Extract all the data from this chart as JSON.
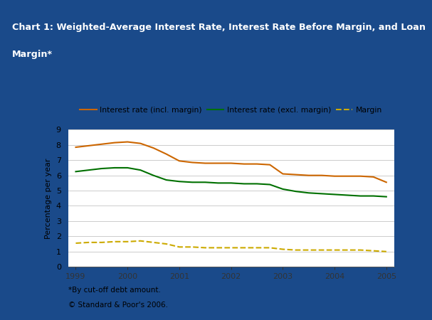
{
  "title_line1": "Chart 1: Weighted-Average Interest Rate, Interest Rate Before Margin, and Loan",
  "title_line2": "Margin*",
  "title_bg_color": "#3A68AE",
  "title_text_color": "#FFFFFF",
  "border_color": "#1A4A8A",
  "ylabel": "Percentage per year",
  "xlabel": "",
  "ylim": [
    0,
    9
  ],
  "yticks": [
    0,
    1,
    2,
    3,
    4,
    5,
    6,
    7,
    8,
    9
  ],
  "footnote1": "*By cut-off debt amount.",
  "footnote2": "© Standard & Poor's 2006.",
  "series": [
    {
      "label": "Interest rate (incl. margin)",
      "color": "#CC6600",
      "linestyle": "solid",
      "linewidth": 1.5,
      "x": [
        1999.0,
        1999.25,
        1999.5,
        1999.75,
        2000.0,
        2000.25,
        2000.5,
        2000.75,
        2001.0,
        2001.25,
        2001.5,
        2001.75,
        2002.0,
        2002.25,
        2002.5,
        2002.75,
        2003.0,
        2003.25,
        2003.5,
        2003.75,
        2004.0,
        2004.25,
        2004.5,
        2004.75,
        2005.0
      ],
      "y": [
        7.85,
        7.95,
        8.05,
        8.15,
        8.2,
        8.1,
        7.8,
        7.4,
        6.95,
        6.85,
        6.8,
        6.8,
        6.8,
        6.75,
        6.75,
        6.7,
        6.1,
        6.05,
        6.0,
        6.0,
        5.95,
        5.95,
        5.95,
        5.9,
        5.55
      ]
    },
    {
      "label": "Interest rate (excl. margin)",
      "color": "#007000",
      "linestyle": "solid",
      "linewidth": 1.5,
      "x": [
        1999.0,
        1999.25,
        1999.5,
        1999.75,
        2000.0,
        2000.25,
        2000.5,
        2000.75,
        2001.0,
        2001.25,
        2001.5,
        2001.75,
        2002.0,
        2002.25,
        2002.5,
        2002.75,
        2003.0,
        2003.25,
        2003.5,
        2003.75,
        2004.0,
        2004.25,
        2004.5,
        2004.75,
        2005.0
      ],
      "y": [
        6.25,
        6.35,
        6.45,
        6.5,
        6.5,
        6.35,
        6.0,
        5.7,
        5.6,
        5.55,
        5.55,
        5.5,
        5.5,
        5.45,
        5.45,
        5.4,
        5.1,
        4.95,
        4.85,
        4.8,
        4.75,
        4.7,
        4.65,
        4.65,
        4.6
      ]
    },
    {
      "label": "Margin",
      "color": "#CCAA00",
      "linestyle": "dashed",
      "linewidth": 1.5,
      "x": [
        1999.0,
        1999.25,
        1999.5,
        1999.75,
        2000.0,
        2000.25,
        2000.5,
        2000.75,
        2001.0,
        2001.25,
        2001.5,
        2001.75,
        2002.0,
        2002.25,
        2002.5,
        2002.75,
        2003.0,
        2003.25,
        2003.5,
        2003.75,
        2004.0,
        2004.25,
        2004.5,
        2004.75,
        2005.0
      ],
      "y": [
        1.55,
        1.6,
        1.6,
        1.65,
        1.65,
        1.7,
        1.6,
        1.5,
        1.3,
        1.3,
        1.25,
        1.25,
        1.25,
        1.25,
        1.25,
        1.25,
        1.15,
        1.1,
        1.1,
        1.1,
        1.1,
        1.1,
        1.1,
        1.05,
        1.0
      ]
    }
  ],
  "xticks": [
    1999,
    2000,
    2001,
    2002,
    2003,
    2004,
    2005
  ],
  "xlim": [
    1998.85,
    2005.15
  ],
  "bg_color": "#FFFFFF",
  "plot_bg_color": "#FFFFFF",
  "grid_color": "#888888",
  "grid_alpha": 0.5,
  "grid_linewidth": 0.6
}
